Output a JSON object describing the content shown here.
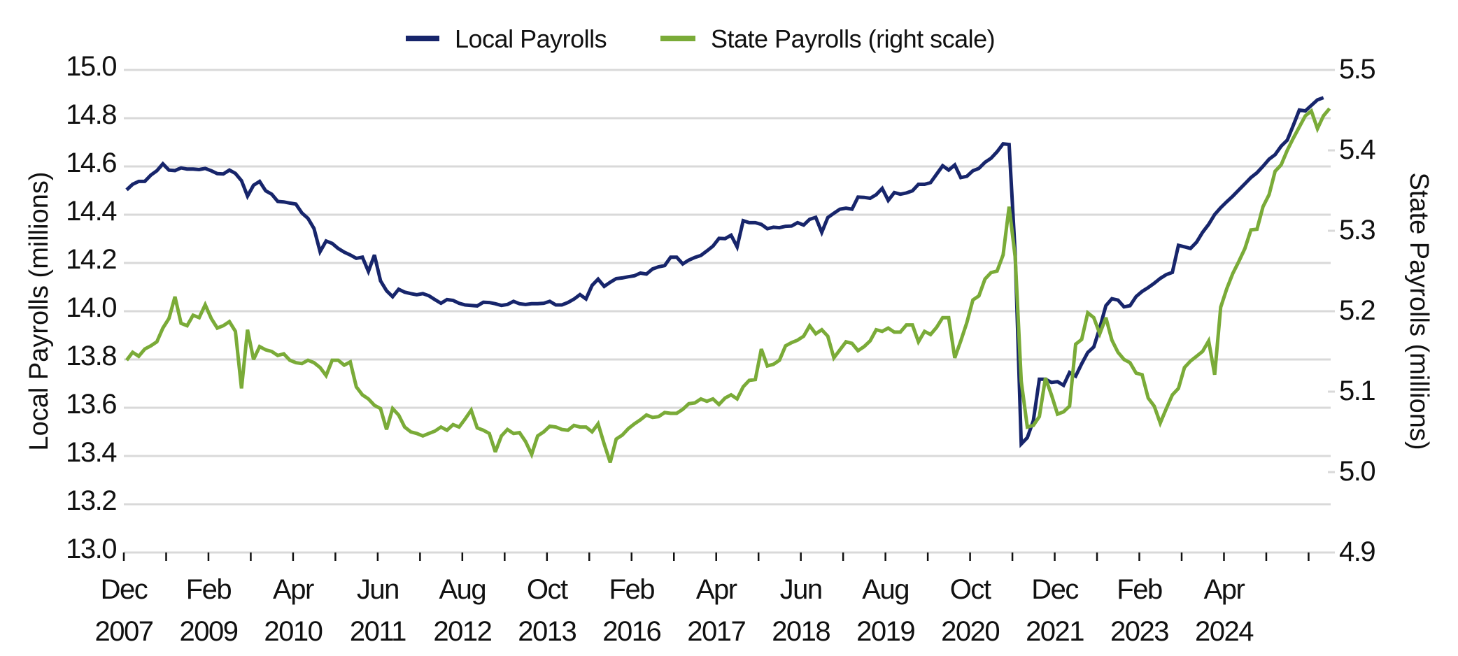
{
  "colors": {
    "local": "#17256b",
    "state": "#7aab38",
    "grid": "#d9d9d9"
  },
  "chart_data": {
    "type": "line",
    "title": "",
    "legend": {
      "placement": "top-center",
      "entries": [
        "Local Payrolls",
        "State Payrolls (right scale)"
      ]
    },
    "grid": true,
    "x": {
      "start": "Dec 2007",
      "frequency": "monthly",
      "tick_every_months": 7,
      "label_every_months": 14,
      "tick_labels": [
        {
          "month": "Dec",
          "year": "2007"
        },
        {
          "month": "Feb",
          "year": "2009"
        },
        {
          "month": "Apr",
          "year": "2010"
        },
        {
          "month": "Jun",
          "year": "2011"
        },
        {
          "month": "Aug",
          "year": "2012"
        },
        {
          "month": "Oct",
          "year": "2013"
        },
        {
          "month": "Feb",
          "year": "2016"
        },
        {
          "month": "Apr",
          "year": "2017"
        },
        {
          "month": "Jun",
          "year": "2018"
        },
        {
          "month": "Aug",
          "year": "2019"
        },
        {
          "month": "Oct",
          "year": "2020"
        },
        {
          "month": "Dec",
          "year": "2021"
        },
        {
          "month": "Feb",
          "year": "2023"
        },
        {
          "month": "Apr",
          "year": "2024"
        }
      ]
    },
    "y_left": {
      "label": "Local Payrolls (millions)",
      "ylim": [
        13.0,
        15.0
      ],
      "ticks": [
        "13.0",
        "13.2",
        "13.4",
        "13.6",
        "13.8",
        "14.0",
        "14.2",
        "14.4",
        "14.6",
        "14.8",
        "15.0"
      ]
    },
    "y_right": {
      "label": "State Payrolls (millions)",
      "ylim": [
        4.9,
        5.5
      ],
      "ticks": [
        "4.9",
        "5.0",
        "5.1",
        "5.2",
        "5.3",
        "5.4",
        "5.5"
      ]
    },
    "series": [
      {
        "name": "Local Payrolls",
        "axis": "left",
        "values": [
          14.503,
          14.526,
          14.538,
          14.538,
          14.564,
          14.582,
          14.611,
          14.585,
          14.583,
          14.594,
          14.589,
          14.589,
          14.587,
          14.592,
          14.582,
          14.57,
          14.569,
          14.585,
          14.571,
          14.541,
          14.477,
          14.522,
          14.538,
          14.499,
          14.485,
          14.455,
          14.453,
          14.448,
          14.444,
          14.407,
          14.385,
          14.343,
          14.247,
          14.291,
          14.281,
          14.26,
          14.245,
          14.233,
          14.219,
          14.224,
          14.165,
          14.233,
          14.126,
          14.085,
          14.06,
          14.091,
          14.079,
          14.073,
          14.068,
          14.073,
          14.064,
          14.048,
          14.033,
          14.048,
          14.045,
          14.033,
          14.026,
          14.024,
          14.022,
          14.037,
          14.036,
          14.031,
          14.024,
          14.028,
          14.041,
          14.031,
          14.028,
          14.031,
          14.031,
          14.033,
          14.041,
          14.026,
          14.026,
          14.036,
          14.05,
          14.069,
          14.051,
          14.107,
          14.133,
          14.103,
          14.12,
          14.135,
          14.138,
          14.143,
          14.147,
          14.158,
          14.154,
          14.175,
          14.184,
          14.189,
          14.224,
          14.224,
          14.196,
          14.212,
          14.223,
          14.231,
          14.25,
          14.27,
          14.302,
          14.301,
          14.315,
          14.267,
          14.375,
          14.367,
          14.367,
          14.36,
          14.342,
          14.348,
          14.346,
          14.352,
          14.353,
          14.367,
          14.357,
          14.381,
          14.389,
          14.327,
          14.388,
          14.406,
          14.423,
          14.427,
          14.423,
          14.473,
          14.472,
          14.468,
          14.483,
          14.509,
          14.459,
          14.492,
          14.485,
          14.49,
          14.499,
          14.526,
          14.526,
          14.533,
          14.568,
          14.603,
          14.585,
          14.606,
          14.554,
          14.559,
          14.582,
          14.592,
          14.617,
          14.634,
          14.661,
          14.694,
          14.691,
          14.235,
          13.45,
          13.476,
          13.546,
          13.718,
          13.718,
          13.705,
          13.708,
          13.693,
          13.746,
          13.731,
          13.782,
          13.829,
          13.852,
          13.931,
          14.023,
          14.052,
          14.046,
          14.018,
          14.023,
          14.061,
          14.082,
          14.098,
          14.116,
          14.136,
          14.152,
          14.161,
          14.273,
          14.267,
          14.26,
          14.286,
          14.327,
          14.36,
          14.401,
          14.429,
          14.454,
          14.477,
          14.503,
          14.528,
          14.554,
          14.574,
          14.601,
          14.63,
          14.649,
          14.684,
          14.709,
          14.77,
          14.834,
          14.83,
          14.853,
          14.876,
          14.885
        ]
      },
      {
        "name": "State Payrolls (right scale)",
        "axis": "right",
        "values": [
          5.139,
          5.149,
          5.144,
          5.153,
          5.157,
          5.162,
          5.179,
          5.191,
          5.218,
          5.185,
          5.182,
          5.195,
          5.192,
          5.208,
          5.191,
          5.179,
          5.182,
          5.187,
          5.175,
          5.104,
          5.177,
          5.14,
          5.156,
          5.152,
          5.15,
          5.145,
          5.147,
          5.139,
          5.136,
          5.135,
          5.139,
          5.136,
          5.13,
          5.12,
          5.139,
          5.139,
          5.133,
          5.137,
          5.106,
          5.096,
          5.091,
          5.083,
          5.079,
          5.053,
          5.079,
          5.071,
          5.056,
          5.05,
          5.048,
          5.045,
          5.048,
          5.051,
          5.056,
          5.052,
          5.059,
          5.056,
          5.066,
          5.077,
          5.055,
          5.052,
          5.048,
          5.025,
          5.045,
          5.053,
          5.048,
          5.049,
          5.038,
          5.022,
          5.045,
          5.05,
          5.057,
          5.056,
          5.053,
          5.052,
          5.058,
          5.056,
          5.056,
          5.05,
          5.06,
          5.035,
          5.012,
          5.041,
          5.046,
          5.054,
          5.06,
          5.065,
          5.071,
          5.068,
          5.069,
          5.074,
          5.073,
          5.073,
          5.078,
          5.085,
          5.086,
          5.091,
          5.088,
          5.091,
          5.084,
          5.092,
          5.096,
          5.091,
          5.106,
          5.114,
          5.115,
          5.153,
          5.132,
          5.134,
          5.139,
          5.157,
          5.161,
          5.164,
          5.169,
          5.182,
          5.172,
          5.177,
          5.169,
          5.142,
          5.152,
          5.162,
          5.16,
          5.151,
          5.156,
          5.163,
          5.177,
          5.175,
          5.179,
          5.174,
          5.174,
          5.183,
          5.183,
          5.162,
          5.175,
          5.171,
          5.18,
          5.192,
          5.192,
          5.142,
          5.163,
          5.186,
          5.214,
          5.219,
          5.24,
          5.248,
          5.25,
          5.27,
          5.33,
          5.267,
          5.113,
          5.056,
          5.058,
          5.069,
          5.117,
          5.096,
          5.072,
          5.075,
          5.082,
          5.159,
          5.165,
          5.198,
          5.192,
          5.172,
          5.192,
          5.164,
          5.149,
          5.14,
          5.136,
          5.123,
          5.121,
          5.092,
          5.082,
          5.061,
          5.079,
          5.096,
          5.104,
          5.13,
          5.138,
          5.144,
          5.15,
          5.163,
          5.121,
          5.205,
          5.228,
          5.247,
          5.262,
          5.278,
          5.301,
          5.302,
          5.33,
          5.345,
          5.374,
          5.382,
          5.4,
          5.415,
          5.429,
          5.443,
          5.449,
          5.427,
          5.443,
          5.452
        ]
      }
    ]
  }
}
